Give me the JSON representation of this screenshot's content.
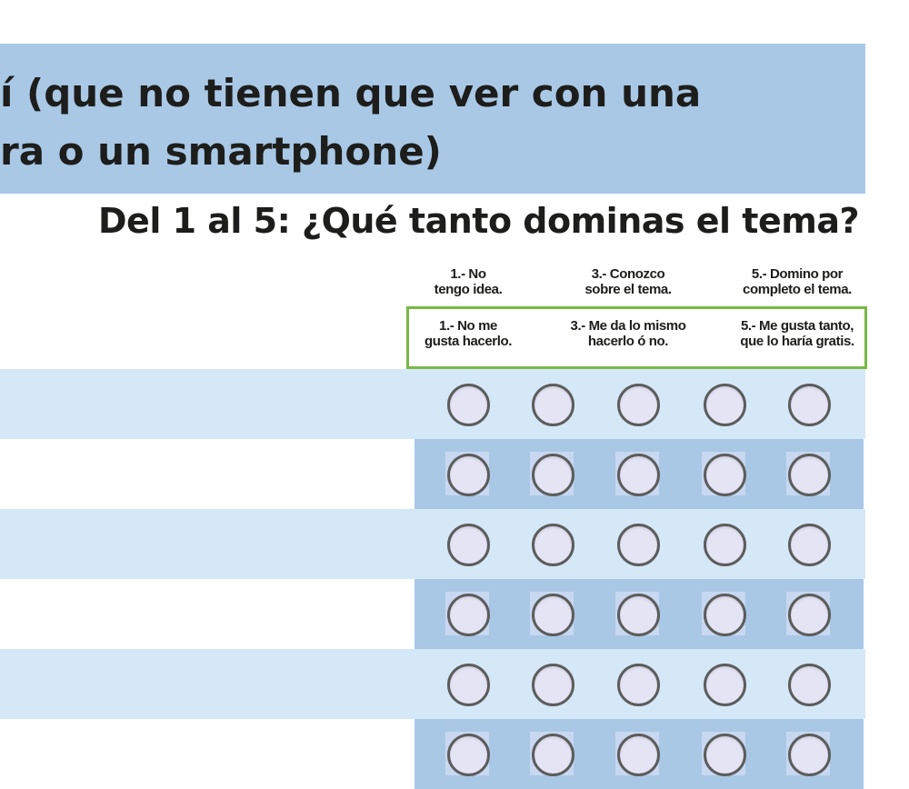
{
  "banner": {
    "line1": "í (que no tienen que ver con una",
    "line2": "ra o un smartphone)"
  },
  "question": "Del 1 al 5: ¿Qué tanto dominas el tema?",
  "scale_top": [
    "1.- No\ntengo idea.",
    "3.- Conozco\nsobre el tema.",
    "5.- Domino por\ncompleto el tema."
  ],
  "scale_bottom": [
    "1.- No me\ngusta hacerlo.",
    "3.- Me da lo mismo\nhacerlo ó no.",
    "5.- Me gusta tanto,\nque lo haría gratis."
  ],
  "rating_options": [
    1,
    2,
    3,
    4,
    5
  ],
  "rows": 6,
  "colors": {
    "banner": "#a9c8e6",
    "row_light": "#d5e8f7",
    "row_dark": "#a9c8e6",
    "green_border": "#78b844"
  }
}
